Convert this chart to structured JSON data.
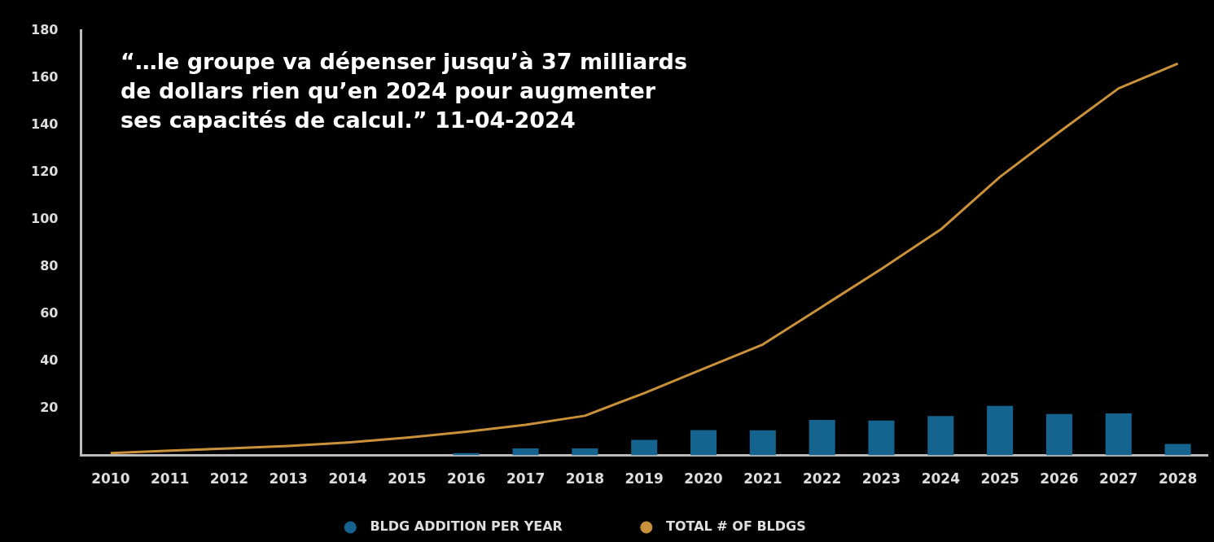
{
  "chart_data": {
    "type": "bar",
    "categories": [
      "2010",
      "2011",
      "2012",
      "2013",
      "2014",
      "2015",
      "2016",
      "2017",
      "2018",
      "2019",
      "2020",
      "2021",
      "2022",
      "2023",
      "2024",
      "2025",
      "2026",
      "2027",
      "2028"
    ],
    "series": [
      {
        "name": "BLDG ADDITION PER YEAR",
        "color": "#14648f",
        "values": [
          null,
          null,
          null,
          null,
          null,
          null,
          1,
          3,
          3,
          6.6,
          10.7,
          10.6,
          15,
          14.8,
          16.7,
          21,
          17.5,
          17.8,
          4.9
        ]
      },
      {
        "name": "TOTAL # OF BLDGS",
        "type": "line",
        "color": "#c8913a",
        "values": [
          1,
          2,
          3,
          4,
          5.5,
          7.5,
          10,
          13,
          16.8,
          26.4,
          36.7,
          47,
          63,
          79,
          95.7,
          118,
          137,
          155.5,
          166
        ]
      }
    ],
    "ylim": [
      0,
      180
    ],
    "yticks": [
      20,
      40,
      60,
      80,
      100,
      120,
      140,
      160,
      180
    ],
    "grid": false,
    "legend": "bottom",
    "marker": "none",
    "annotations": [
      "“…le groupe va dépenser jusqu’à 37 milliards de dollars rien qu’en 2024 pour augmenter ses capacités de calcul.” 11-04-2024"
    ]
  }
}
